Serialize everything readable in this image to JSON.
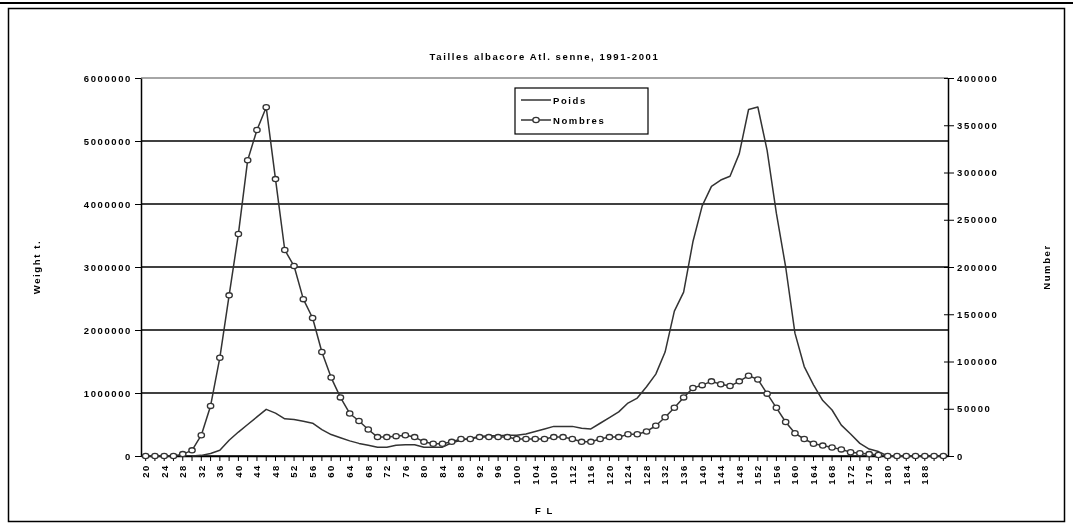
{
  "chart_data": {
    "type": "line",
    "title": "Tailles albacore Atl. senne, 1991-2001",
    "xlabel": "F L",
    "ylabel": "Weight t.",
    "y2label": "Number",
    "categories": [
      "20",
      null,
      "24",
      null,
      "28",
      null,
      "32",
      null,
      "36",
      null,
      "40",
      null,
      "44",
      null,
      "48",
      null,
      "52",
      null,
      "56",
      null,
      "60",
      null,
      "64",
      null,
      "68",
      null,
      "72",
      null,
      "76",
      null,
      "80",
      null,
      "84",
      null,
      "88",
      null,
      "92",
      null,
      "96",
      null,
      "100",
      null,
      "104",
      null,
      "108",
      null,
      "112",
      null,
      "116",
      null,
      "120",
      null,
      "124",
      null,
      "128",
      null,
      "132",
      null,
      "136",
      null,
      "140",
      null,
      "144",
      null,
      "148",
      null,
      "152",
      null,
      "156",
      null,
      "160",
      null,
      "164",
      null,
      "168",
      null,
      "172",
      null,
      "176",
      null,
      "180",
      null,
      "184",
      null,
      "188",
      null,
      null
    ],
    "series": [
      {
        "name": "Poids",
        "color": "#333333",
        "marker": "none",
        "values": [
          null,
          null,
          null,
          null,
          null,
          0,
          10000,
          40000,
          90000,
          250000,
          380000,
          500000,
          620000,
          740000,
          680000,
          590000,
          580000,
          550000,
          520000,
          420000,
          340000,
          290000,
          240000,
          200000,
          170000,
          140000,
          140000,
          170000,
          180000,
          180000,
          140000,
          140000,
          140000,
          210000,
          250000,
          280000,
          310000,
          320000,
          320000,
          330000,
          330000,
          350000,
          390000,
          430000,
          470000,
          470000,
          470000,
          440000,
          430000,
          520000,
          610000,
          700000,
          840000,
          920000,
          1100000,
          1300000,
          1650000,
          2300000,
          2600000,
          3400000,
          3970000,
          4280000,
          4380000,
          4440000,
          4800000,
          5500000,
          5540000,
          4850000,
          3850000,
          3000000,
          1950000,
          1420000,
          1130000,
          880000,
          730000,
          490000,
          350000,
          200000,
          110000,
          70000,
          0,
          0,
          0,
          0,
          0,
          0,
          0
        ]
      },
      {
        "name": "Nombres",
        "color": "#333333",
        "marker": "circle",
        "axis": "y2",
        "values": [
          0,
          0,
          0,
          0,
          2000,
          6000,
          22000,
          53000,
          104000,
          170000,
          235000,
          313000,
          345000,
          369000,
          293000,
          218000,
          201000,
          166000,
          146000,
          110000,
          83000,
          62000,
          45000,
          37000,
          28000,
          20000,
          20000,
          21000,
          22000,
          20000,
          15000,
          13000,
          13000,
          15000,
          18000,
          18000,
          20000,
          20000,
          20000,
          20000,
          18000,
          18000,
          18000,
          18000,
          20000,
          20000,
          18000,
          15000,
          15000,
          18000,
          20000,
          20000,
          23000,
          23000,
          26000,
          32000,
          41000,
          51000,
          62000,
          72000,
          75000,
          79000,
          76000,
          74000,
          79000,
          85000,
          81000,
          66000,
          51000,
          36000,
          24000,
          18000,
          13000,
          11000,
          9000,
          7000,
          4000,
          3000,
          2000,
          1000,
          0,
          0,
          0,
          0,
          0,
          0,
          0
        ]
      }
    ],
    "ylim": [
      0,
      6000000
    ],
    "yticks": [
      0,
      1000000,
      2000000,
      3000000,
      4000000,
      5000000,
      6000000
    ],
    "y2lim": [
      0,
      400000
    ],
    "y2ticks": [
      0,
      50000,
      100000,
      150000,
      200000,
      250000,
      300000,
      350000,
      400000
    ],
    "grid": "y",
    "legend": "top"
  }
}
